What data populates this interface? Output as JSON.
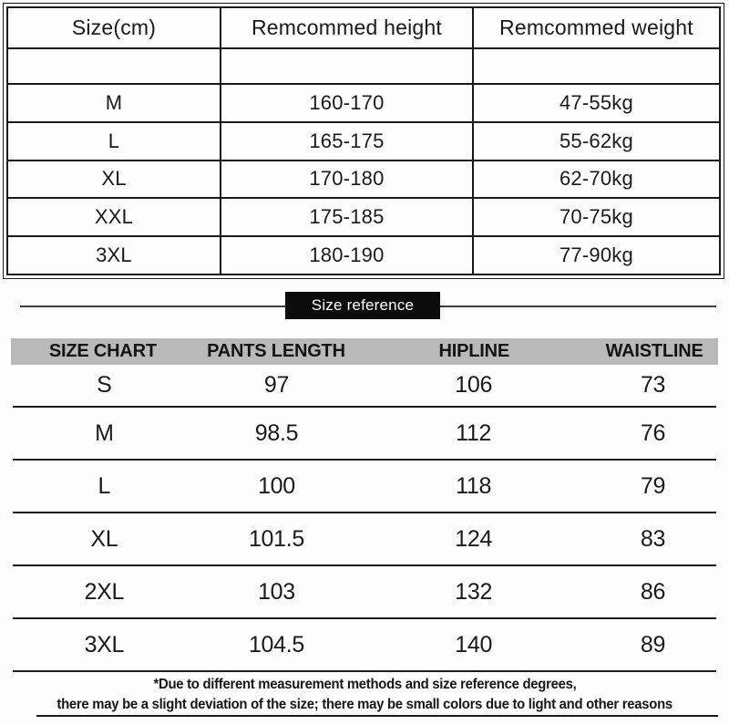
{
  "recommend_table": {
    "headers": [
      "Size(cm)",
      "Remcommed height",
      "Remcommed weight"
    ],
    "rows": [
      [
        "M",
        "160-170",
        "47-55kg"
      ],
      [
        "L",
        "165-175",
        "55-62kg"
      ],
      [
        "XL",
        "170-180",
        "62-70kg"
      ],
      [
        "XXL",
        "175-185",
        "70-75kg"
      ],
      [
        "3XL",
        "180-190",
        "77-90kg"
      ]
    ]
  },
  "divider_badge": {
    "label": "Size reference"
  },
  "size_chart_table": {
    "headers": [
      "SIZE CHART",
      "PANTS LENGTH",
      "HIPLINE",
      "WAISTLINE"
    ],
    "rows": [
      [
        "S",
        "97",
        "106",
        "73"
      ],
      [
        "M",
        "98.5",
        "112",
        "76"
      ],
      [
        "L",
        "100",
        "118",
        "79"
      ],
      [
        "XL",
        "101.5",
        "124",
        "83"
      ],
      [
        "2XL",
        "103",
        "132",
        "86"
      ],
      [
        "3XL",
        "104.5",
        "140",
        "89"
      ]
    ]
  },
  "footnote": {
    "line1": "*Due to different measurement methods and size reference degrees,",
    "line2": "there may be a slight deviation of the size; there may be small colors due to light and other reasons"
  },
  "colors": {
    "ink": "#1a1a1a",
    "badge_bg": "#0c0c0c",
    "badge_text": "#ffffff",
    "header_bar_bg": "#b9b9b9"
  }
}
